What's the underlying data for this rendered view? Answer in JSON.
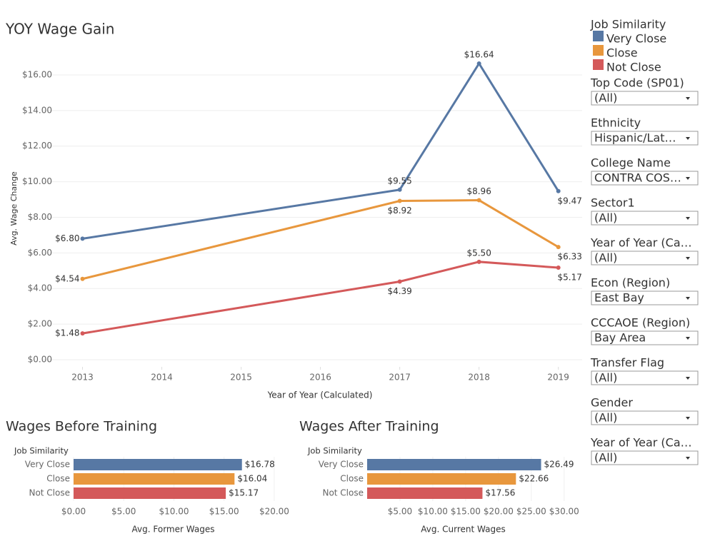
{
  "chart_data": [
    {
      "type": "line",
      "title": "YOY Wage Gain",
      "x_label": "Year of Year (Calculated)",
      "y_label": "Avg. Wage Change",
      "x": [
        2013,
        2017,
        2018,
        2019
      ],
      "xlim": [
        2012.5,
        2019.3
      ],
      "xticks": [
        2013,
        2014,
        2015,
        2016,
        2017,
        2018,
        2019
      ],
      "ylim": [
        0,
        17
      ],
      "yticks": [
        {
          "value": 0,
          "label": "$0.00"
        },
        {
          "value": 2,
          "label": "$2.00"
        },
        {
          "value": 4,
          "label": "$4.00"
        },
        {
          "value": 6,
          "label": "$6.00"
        },
        {
          "value": 8,
          "label": "$8.00"
        },
        {
          "value": 10,
          "label": "$10.00"
        },
        {
          "value": 12,
          "label": "$12.00"
        },
        {
          "value": 14,
          "label": "$14.00"
        },
        {
          "value": 16,
          "label": "$16.00"
        }
      ],
      "grid": true,
      "legend_title": "Job Similarity",
      "series": [
        {
          "name": "Very Close",
          "color": "#5778a4",
          "values": [
            6.8,
            9.55,
            16.64,
            9.47
          ],
          "value_labels": [
            "$6.80",
            "$9.55",
            "$16.64",
            "$9.47"
          ]
        },
        {
          "name": "Close",
          "color": "#e8973d",
          "values": [
            4.54,
            8.92,
            8.96,
            6.33
          ],
          "value_labels": [
            "$4.54",
            "$8.92",
            "$8.96",
            "$6.33"
          ]
        },
        {
          "name": "Not Close",
          "color": "#d4595a",
          "values": [
            1.48,
            4.39,
            5.5,
            5.17
          ],
          "value_labels": [
            "$1.48",
            "$4.39",
            "$5.50",
            "$5.17"
          ]
        }
      ]
    },
    {
      "type": "hbar",
      "title": "Wages Before Training",
      "category_label": "Job Similarity",
      "x_label": "Avg. Former Wages",
      "categories": [
        "Very Close",
        "Close",
        "Not Close"
      ],
      "values": [
        16.78,
        16.04,
        15.17
      ],
      "value_labels": [
        "$16.78",
        "$16.04",
        "$15.17"
      ],
      "colors": [
        "#5778a4",
        "#e8973d",
        "#d4595a"
      ],
      "xlim": [
        0,
        21
      ],
      "xticks": [
        {
          "value": 0,
          "label": "$0.00"
        },
        {
          "value": 5,
          "label": "$5.00"
        },
        {
          "value": 10,
          "label": "$10.00"
        },
        {
          "value": 15,
          "label": "$15.00"
        },
        {
          "value": 20,
          "label": "$20.00"
        }
      ]
    },
    {
      "type": "hbar",
      "title": "Wages After Training",
      "category_label": "Job Similarity",
      "x_label": "Avg. Current Wages",
      "categories": [
        "Very Close",
        "Close",
        "Not Close"
      ],
      "values": [
        26.49,
        22.66,
        17.56
      ],
      "value_labels": [
        "$26.49",
        "$22.66",
        "$17.56"
      ],
      "colors": [
        "#5778a4",
        "#e8973d",
        "#d4595a"
      ],
      "xlim": [
        0,
        31
      ],
      "xticks": [
        {
          "value": 5,
          "label": "$5.00"
        },
        {
          "value": 10,
          "label": "$10.00"
        },
        {
          "value": 15,
          "label": "$15.00"
        },
        {
          "value": 20,
          "label": "$20.00"
        },
        {
          "value": 25,
          "label": "$25.00"
        },
        {
          "value": 30,
          "label": "$30.00"
        }
      ]
    }
  ],
  "filters": [
    {
      "label": "Top Code (SP01)",
      "value": "(All)"
    },
    {
      "label": "Ethnicity",
      "value": "Hispanic/Lat…"
    },
    {
      "label": "College Name",
      "value": "CONTRA COS…"
    },
    {
      "label": "Sector1",
      "value": "(All)"
    },
    {
      "label": "Year of Year (Ca…",
      "value": "(All)"
    },
    {
      "label": "Econ (Region)",
      "value": "East Bay"
    },
    {
      "label": "CCCAOE (Region)",
      "value": "Bay Area"
    },
    {
      "label": "Transfer Flag",
      "value": "(All)"
    },
    {
      "label": "Gender",
      "value": "(All)"
    },
    {
      "label": "Year of Year (Ca…",
      "value": "(All)"
    }
  ]
}
